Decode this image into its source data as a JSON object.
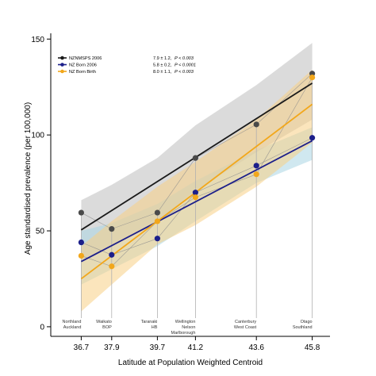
{
  "chart_data": {
    "type": "scatter",
    "xlabel": "Latitude at Population Weighted Centroid",
    "ylabel": "Age standardised prevalence (per 100,000)",
    "xlim": [
      35.5,
      46.5
    ],
    "ylim": [
      -5,
      153
    ],
    "x_ticks": [
      36.7,
      37.9,
      39.7,
      41.2,
      43.6,
      45.8
    ],
    "x_tick_labels": [
      "36.7",
      "37.9",
      "39.7",
      "41.2",
      "43.6",
      "45.8"
    ],
    "y_ticks": [
      0,
      50,
      100,
      150
    ],
    "y_tick_labels": [
      "0",
      "50",
      "100",
      "150"
    ],
    "grid": false,
    "legend_position": "top-left",
    "regions": [
      {
        "x": 36.7,
        "lines": [
          "Northland",
          "Auckland"
        ]
      },
      {
        "x": 37.9,
        "lines": [
          "Waikato",
          "BOP"
        ]
      },
      {
        "x": 39.7,
        "lines": [
          "Taranaki",
          "HB"
        ]
      },
      {
        "x": 41.2,
        "lines": [
          "Wellington",
          "Nelson",
          "Marlborough"
        ]
      },
      {
        "x": 43.6,
        "lines": [
          "Canterbury",
          "West Coast"
        ]
      },
      {
        "x": 45.8,
        "lines": [
          "Otago",
          "Southland"
        ]
      }
    ],
    "series": [
      {
        "name": "NZNMSPS 2006",
        "stat": "7.9 ± 1.2,",
        "p": "P < 0.003",
        "color": "#1a1a1a",
        "band_color": "#bdbdbd",
        "x": [
          36.7,
          37.9,
          39.7,
          41.2,
          43.6,
          45.8
        ],
        "values": [
          59.5,
          51,
          59.5,
          88,
          105.5,
          132
        ],
        "fit": {
          "x": [
            36.7,
            45.8
          ],
          "y": [
            50.5,
            127
          ]
        },
        "band_upper": [
          66,
          74,
          88,
          105,
          126,
          148
        ],
        "band_lower": [
          35,
          42,
          55,
          71,
          91,
          108
        ]
      },
      {
        "name": "NZ Born 2006",
        "stat": "5.8 ± 0.2,",
        "p": "P < 0.0001",
        "color": "#1c1f8a",
        "band_color": "#a9d5e3",
        "x": [
          36.7,
          37.9,
          39.7,
          41.2,
          43.6,
          45.8
        ],
        "values": [
          44,
          37.5,
          46,
          70,
          84,
          98.5
        ],
        "fit": {
          "x": [
            36.7,
            45.8
          ],
          "y": [
            34,
            97
          ]
        },
        "band_upper": [
          50,
          54,
          64,
          76,
          92,
          104
        ],
        "band_lower": [
          22,
          30,
          42,
          55,
          75,
          87
        ]
      },
      {
        "name": "NZ Born Birth",
        "stat": "8.0 ± 1.1,",
        "p": "P < 0.003",
        "color": "#f2a71b",
        "band_color": "#f7cf85",
        "x": [
          36.7,
          37.9,
          39.7,
          41.2,
          43.6,
          45.8
        ],
        "values": [
          37,
          31.5,
          55,
          67.5,
          79.5,
          130
        ],
        "fit": {
          "x": [
            36.7,
            45.8
          ],
          "y": [
            25,
            116
          ]
        },
        "band_upper": [
          42,
          55,
          73,
          86,
          108,
          134
        ],
        "band_lower": [
          8,
          22,
          43,
          53,
          73,
          96
        ]
      }
    ]
  }
}
